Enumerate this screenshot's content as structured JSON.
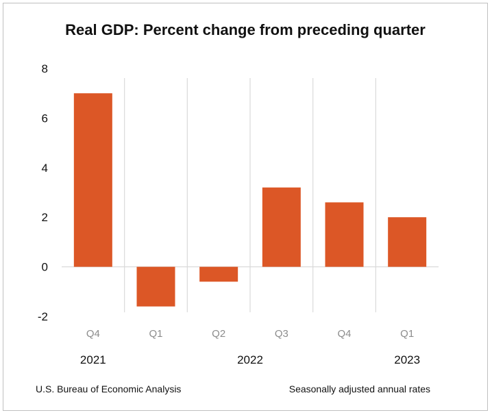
{
  "chart_data": {
    "type": "bar",
    "title": "Real GDP:  Percent change from preceding quarter",
    "categories": [
      "Q4",
      "Q1",
      "Q2",
      "Q3",
      "Q4",
      "Q1"
    ],
    "years": [
      {
        "label": "2021",
        "category_index": 0
      },
      {
        "label": "2022",
        "category_index": 2.5
      },
      {
        "label": "2023",
        "category_index": 5
      }
    ],
    "values": [
      7.0,
      -1.6,
      -0.6,
      3.2,
      2.6,
      2.0
    ],
    "ylim": [
      -2,
      8
    ],
    "yticks": [
      -2,
      0,
      2,
      4,
      6,
      8
    ],
    "xlabel": "",
    "ylabel": "",
    "grid": false,
    "bar_color": "#dc5726",
    "axis_color": "#d9d9d9"
  },
  "footer": {
    "source": "U.S. Bureau of Economic Analysis",
    "note": "Seasonally adjusted annual rates"
  }
}
